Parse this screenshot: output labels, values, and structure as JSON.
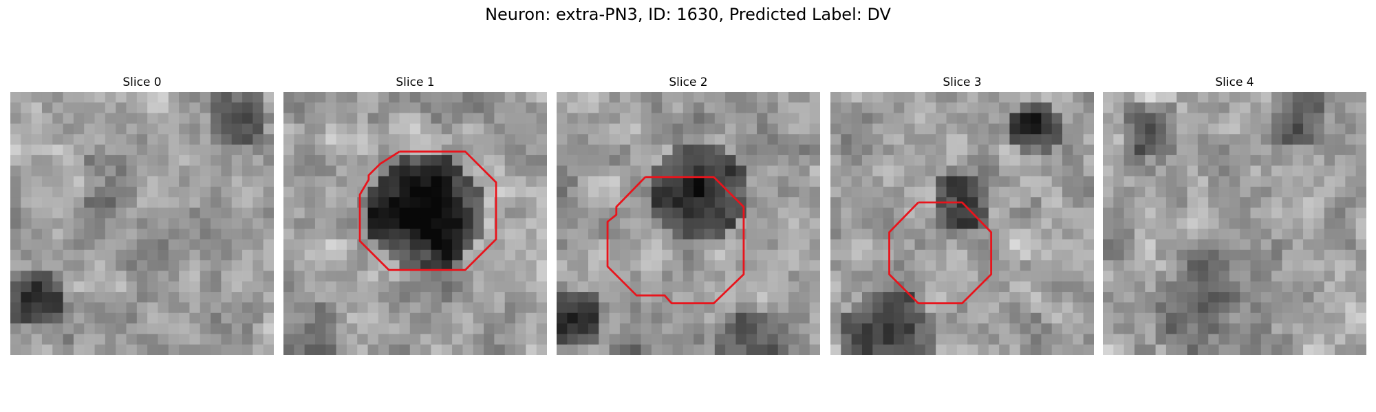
{
  "header": {
    "title": "Neuron: extra-PN3, ID: 1630, Predicted Label: DV"
  },
  "panels": [
    {
      "title": "Slice 0"
    },
    {
      "title": "Slice 1"
    },
    {
      "title": "Slice 2"
    },
    {
      "title": "Slice 3"
    },
    {
      "title": "Slice 4"
    }
  ]
}
